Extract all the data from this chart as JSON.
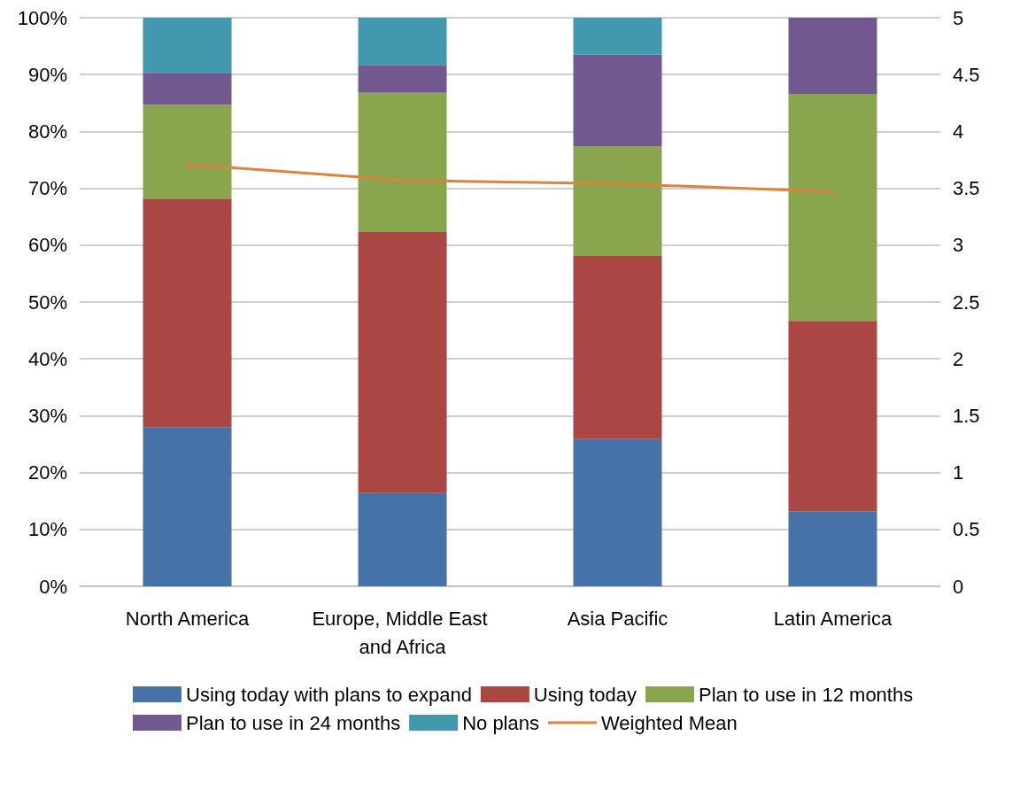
{
  "chart_data": {
    "type": "bar",
    "stacked": true,
    "grid": "y",
    "legend": "bottom",
    "categories": [
      "North America",
      "Europe, Middle East and Africa",
      "Asia Pacific",
      "Latin America"
    ],
    "ylim": [
      0,
      100
    ],
    "yticks": [
      {
        "value": 0,
        "label": "0%"
      },
      {
        "value": 10,
        "label": "10%"
      },
      {
        "value": 20,
        "label": "20%"
      },
      {
        "value": 30,
        "label": "30%"
      },
      {
        "value": 40,
        "label": "40%"
      },
      {
        "value": 50,
        "label": "50%"
      },
      {
        "value": 60,
        "label": "60%"
      },
      {
        "value": 70,
        "label": "70%"
      },
      {
        "value": 80,
        "label": "80%"
      },
      {
        "value": 90,
        "label": "90%"
      },
      {
        "value": 100,
        "label": "100%"
      }
    ],
    "y2lim": [
      0,
      5
    ],
    "y2ticks": [
      0,
      0.5,
      1,
      1.5,
      2,
      2.5,
      3,
      3.5,
      4,
      4.5,
      5
    ],
    "series": [
      {
        "name": "Using today with plans to expand",
        "color": "#4572a7",
        "values": [
          28,
          16.4,
          25.9,
          13.2
        ]
      },
      {
        "name": "Using today",
        "color": "#aa4643",
        "values": [
          40.2,
          45.9,
          32.2,
          33.5
        ]
      },
      {
        "name": "Plan to use in 12 months",
        "color": "#89a54e",
        "values": [
          16.5,
          24.5,
          19.3,
          39.9
        ]
      },
      {
        "name": "Plan to use in 24 months",
        "color": "#71588f",
        "values": [
          5.6,
          4.9,
          16.1,
          13.4
        ]
      },
      {
        "name": "No plans",
        "color": "#4198af",
        "values": [
          9.7,
          8.3,
          6.5,
          0
        ]
      },
      {
        "name": "Weighted Mean",
        "type": "line",
        "axis": "y2",
        "marker": "none",
        "line_style": "solid",
        "color": "#db843d",
        "values": [
          3.71,
          3.57,
          3.54,
          3.47
        ]
      }
    ]
  }
}
